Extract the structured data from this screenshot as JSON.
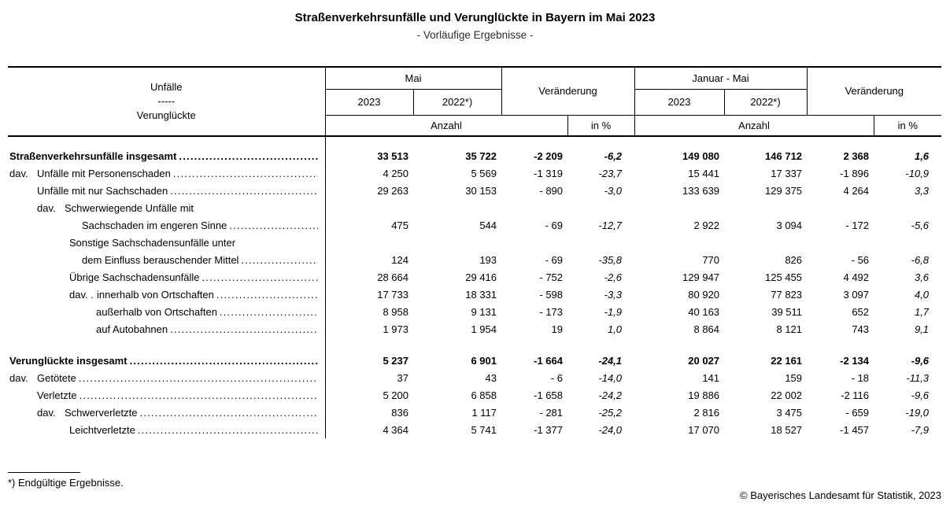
{
  "title": "Straßenverkehrsunfälle und Verunglückte in Bayern im Mai 2023",
  "subtitle": "- Vorläufige Ergebnisse -",
  "table": {
    "header": {
      "col1_line1": "Unfälle",
      "col1_line2": "-----",
      "col1_line3": "Verunglückte",
      "period1": "Mai",
      "period2": "Januar - Mai",
      "year_current": "2023",
      "year_previous": "2022*)",
      "change": "Veränderung",
      "count_label": "Anzahl",
      "percent_label": "in %"
    },
    "rows": [
      {
        "label": "Straßenverkehrsunfälle insgesamt",
        "indent": "0",
        "bold": true,
        "leader": true,
        "values": [
          "33 513",
          "35 722",
          "-2 209",
          "-6,2",
          "149 080",
          "146 712",
          "2 368",
          "1,6"
        ]
      },
      {
        "label": "Unfälle mit Personenschaden",
        "prefix": "dav.",
        "indent": "0",
        "bold": false,
        "leader": true,
        "values": [
          "4 250",
          "5 569",
          "-1 319",
          "-23,7",
          "15 441",
          "17 337",
          "-1 896",
          "-10,9"
        ]
      },
      {
        "label": "Unfälle mit nur Sachschaden",
        "indent": "1",
        "bold": false,
        "leader": true,
        "values": [
          "29 263",
          "30 153",
          "- 890",
          "-3,0",
          "133 639",
          "129 375",
          "4 264",
          "3,3"
        ]
      },
      {
        "label": "Schwerwiegende Unfälle mit",
        "prefix": "dav.",
        "indent": "1",
        "bold": false,
        "leader": false,
        "values": []
      },
      {
        "label": "Sachschaden im engeren Sinne",
        "indent": "2b",
        "bold": false,
        "leader": true,
        "values": [
          "475",
          "544",
          "- 69",
          "-12,7",
          "2 922",
          "3 094",
          "- 172",
          "-5,6"
        ]
      },
      {
        "label": "Sonstige Sachschadensunfälle unter",
        "indent": "2",
        "bold": false,
        "leader": false,
        "values": []
      },
      {
        "label": "dem Einfluss berauschender Mittel",
        "indent": "2b",
        "bold": false,
        "leader": true,
        "values": [
          "124",
          "193",
          "- 69",
          "-35,8",
          "770",
          "826",
          "- 56",
          "-6,8"
        ]
      },
      {
        "label": "Übrige Sachschadensunfälle",
        "indent": "2",
        "bold": false,
        "leader": true,
        "values": [
          "28 664",
          "29 416",
          "- 752",
          "-2,6",
          "129 947",
          "125 455",
          "4 492",
          "3,6"
        ]
      },
      {
        "label": "innerhalb von Ortschaften",
        "prefix": "dav. .",
        "indent": "2",
        "bold": false,
        "leader": true,
        "values": [
          "17 733",
          "18 331",
          "- 598",
          "-3,3",
          "80 920",
          "77 823",
          "3 097",
          "4,0"
        ]
      },
      {
        "label": "außerhalb von Ortschaften",
        "indent": "3",
        "bold": false,
        "leader": true,
        "values": [
          "8 958",
          "9 131",
          "- 173",
          "-1,9",
          "40 163",
          "39 511",
          "652",
          "1,7"
        ]
      },
      {
        "label": "auf Autobahnen",
        "indent": "3",
        "bold": false,
        "leader": true,
        "values": [
          "1 973",
          "1 954",
          "19",
          "1,0",
          "8 864",
          "8 121",
          "743",
          "9,1"
        ]
      },
      {
        "label": "Verunglückte insgesamt",
        "indent": "0",
        "bold": true,
        "leader": true,
        "spacer_before": true,
        "values": [
          "5 237",
          "6 901",
          "-1 664",
          "-24,1",
          "20 027",
          "22 161",
          "-2 134",
          "-9,6"
        ]
      },
      {
        "label": "Getötete",
        "prefix": "dav.",
        "indent": "0",
        "bold": false,
        "leader": true,
        "values": [
          "37",
          "43",
          "- 6",
          "-14,0",
          "141",
          "159",
          "- 18",
          "-11,3"
        ]
      },
      {
        "label": "Verletzte",
        "indent": "1",
        "bold": false,
        "leader": true,
        "values": [
          "5 200",
          "6 858",
          "-1 658",
          "-24,2",
          "19 886",
          "22 002",
          "-2 116",
          "-9,6"
        ]
      },
      {
        "label": "Schwerverletzte",
        "prefix": "dav.",
        "indent": "1",
        "bold": false,
        "leader": true,
        "values": [
          "836",
          "1 117",
          "- 281",
          "-25,2",
          "2 816",
          "3 475",
          "- 659",
          "-19,0"
        ]
      },
      {
        "label": "Leichtverletzte",
        "indent": "2",
        "bold": false,
        "leader": true,
        "values": [
          "4 364",
          "5 741",
          "-1 377",
          "-24,0",
          "17 070",
          "18 527",
          "-1 457",
          "-7,9"
        ]
      }
    ]
  },
  "footnote": "*) Endgültige Ergebnisse.",
  "copyright": "© Bayerisches Landesamt für Statistik, 2023"
}
